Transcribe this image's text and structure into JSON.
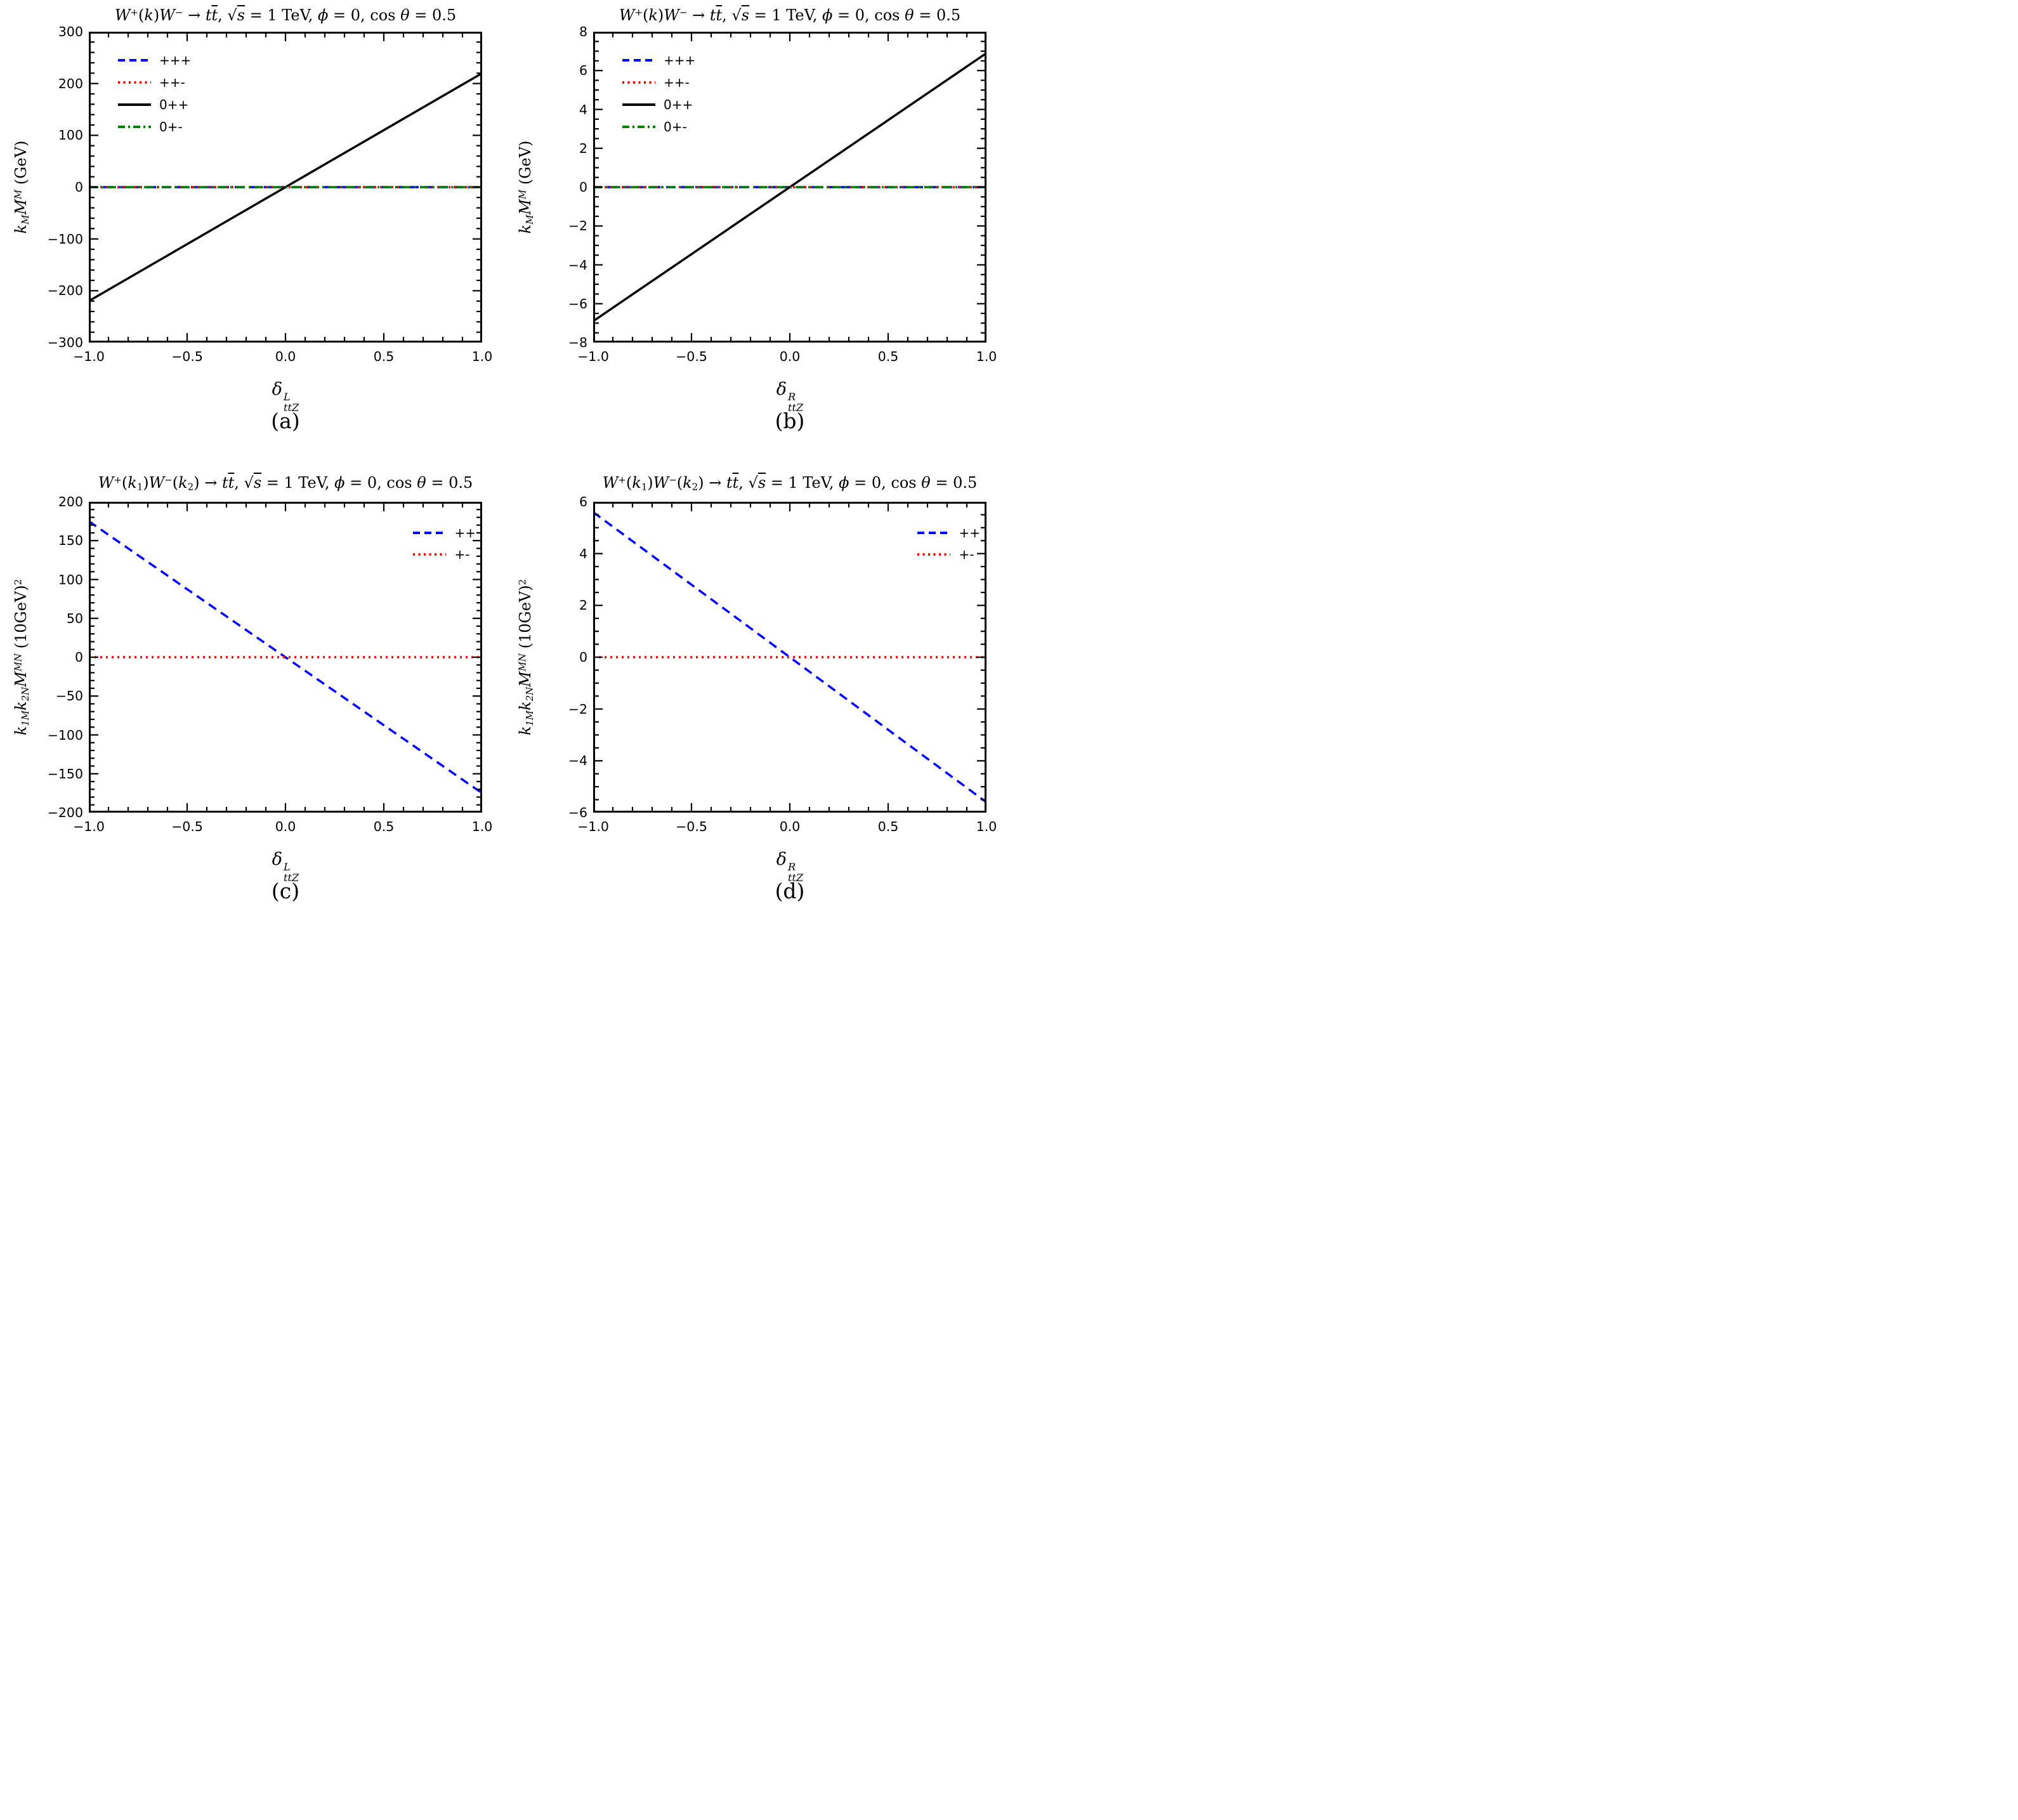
{
  "figure": {
    "panels": [
      {
        "caption": "(a)",
        "title_runs": [
          {
            "t": "W",
            "it": true
          },
          {
            "t": "+",
            "sup": true
          },
          {
            "t": "("
          },
          {
            "t": "k",
            "it": true
          },
          {
            "t": ")"
          },
          {
            "t": "W",
            "it": true
          },
          {
            "t": "−",
            "sup": true
          },
          {
            "t": " → "
          },
          {
            "t": "t",
            "it": true
          },
          {
            "t": "t",
            "it": true,
            "ol": true
          },
          {
            "t": ",  "
          },
          {
            "t": "√"
          },
          {
            "t": "s",
            "it": true,
            "ol": true
          },
          {
            "t": " = 1 TeV,  "
          },
          {
            "t": "ϕ",
            "it": true
          },
          {
            "t": " = 0, cos "
          },
          {
            "t": "θ",
            "it": true
          },
          {
            "t": " = 0.5"
          }
        ],
        "xlabel_runs": [
          {
            "t": "δ",
            "it": true
          },
          {
            "stack": {
              "sup": "L",
              "sub": "ttZ"
            }
          }
        ],
        "ylabel_runs": [
          {
            "t": "k",
            "it": true
          },
          {
            "t": "M",
            "sub": true,
            "it": true
          },
          {
            "t": "M",
            "cal": true
          },
          {
            "t": "M",
            "sup": true,
            "it": true
          },
          {
            "t": " (GeV)"
          }
        ]
      },
      {
        "caption": "(b)",
        "title_runs": [
          {
            "t": "W",
            "it": true
          },
          {
            "t": "+",
            "sup": true
          },
          {
            "t": "("
          },
          {
            "t": "k",
            "it": true
          },
          {
            "t": ")"
          },
          {
            "t": "W",
            "it": true
          },
          {
            "t": "−",
            "sup": true
          },
          {
            "t": " → "
          },
          {
            "t": "t",
            "it": true
          },
          {
            "t": "t",
            "it": true,
            "ol": true
          },
          {
            "t": ",  "
          },
          {
            "t": "√"
          },
          {
            "t": "s",
            "it": true,
            "ol": true
          },
          {
            "t": " = 1 TeV,  "
          },
          {
            "t": "ϕ",
            "it": true
          },
          {
            "t": " = 0, cos "
          },
          {
            "t": "θ",
            "it": true
          },
          {
            "t": " = 0.5"
          }
        ],
        "xlabel_runs": [
          {
            "t": "δ",
            "it": true
          },
          {
            "stack": {
              "sup": "R",
              "sub": "ttZ"
            }
          }
        ],
        "ylabel_runs": [
          {
            "t": "k",
            "it": true
          },
          {
            "t": "M",
            "sub": true,
            "it": true
          },
          {
            "t": "M",
            "cal": true
          },
          {
            "t": "M",
            "sup": true,
            "it": true
          },
          {
            "t": " (GeV)"
          }
        ]
      },
      {
        "caption": "(c)",
        "title_runs": [
          {
            "t": "W",
            "it": true
          },
          {
            "t": "+",
            "sup": true
          },
          {
            "t": "("
          },
          {
            "t": "k",
            "it": true
          },
          {
            "t": "1",
            "sub": true
          },
          {
            "t": ")"
          },
          {
            "t": "W",
            "it": true
          },
          {
            "t": "−",
            "sup": true
          },
          {
            "t": "("
          },
          {
            "t": "k",
            "it": true
          },
          {
            "t": "2",
            "sub": true
          },
          {
            "t": ")"
          },
          {
            "t": " → "
          },
          {
            "t": "t",
            "it": true
          },
          {
            "t": "t",
            "it": true,
            "ol": true
          },
          {
            "t": ",  "
          },
          {
            "t": "√"
          },
          {
            "t": "s",
            "it": true,
            "ol": true
          },
          {
            "t": " = 1 TeV,  "
          },
          {
            "t": "ϕ",
            "it": true
          },
          {
            "t": " = 0, cos "
          },
          {
            "t": "θ",
            "it": true
          },
          {
            "t": " = 0.5"
          }
        ],
        "xlabel_runs": [
          {
            "t": "δ",
            "it": true
          },
          {
            "stack": {
              "sup": "L",
              "sub": "ttZ"
            }
          }
        ],
        "ylabel_runs": [
          {
            "t": "k",
            "it": true
          },
          {
            "t": "1M",
            "sub": true,
            "it": true
          },
          {
            "t": "k",
            "it": true
          },
          {
            "t": "2N",
            "sub": true,
            "it": true
          },
          {
            "t": "M",
            "cal": true
          },
          {
            "t": "MN",
            "sup": true,
            "it": true
          },
          {
            "t": " (10GeV)"
          },
          {
            "t": "2",
            "sup": true
          }
        ]
      },
      {
        "caption": "(d)",
        "title_runs": [
          {
            "t": "W",
            "it": true
          },
          {
            "t": "+",
            "sup": true
          },
          {
            "t": "("
          },
          {
            "t": "k",
            "it": true
          },
          {
            "t": "1",
            "sub": true
          },
          {
            "t": ")"
          },
          {
            "t": "W",
            "it": true
          },
          {
            "t": "−",
            "sup": true
          },
          {
            "t": "("
          },
          {
            "t": "k",
            "it": true
          },
          {
            "t": "2",
            "sub": true
          },
          {
            "t": ")"
          },
          {
            "t": " → "
          },
          {
            "t": "t",
            "it": true
          },
          {
            "t": "t",
            "it": true,
            "ol": true
          },
          {
            "t": ",  "
          },
          {
            "t": "√"
          },
          {
            "t": "s",
            "it": true,
            "ol": true
          },
          {
            "t": " = 1 TeV,  "
          },
          {
            "t": "ϕ",
            "it": true
          },
          {
            "t": " = 0, cos "
          },
          {
            "t": "θ",
            "it": true
          },
          {
            "t": " = 0.5"
          }
        ],
        "xlabel_runs": [
          {
            "t": "δ",
            "it": true
          },
          {
            "stack": {
              "sup": "R",
              "sub": "ttZ"
            }
          }
        ],
        "ylabel_runs": [
          {
            "t": "k",
            "it": true
          },
          {
            "t": "1M",
            "sub": true,
            "it": true
          },
          {
            "t": "k",
            "it": true
          },
          {
            "t": "2N",
            "sub": true,
            "it": true
          },
          {
            "t": "M",
            "cal": true
          },
          {
            "t": "MN",
            "sup": true,
            "it": true
          },
          {
            "t": " (10GeV)"
          },
          {
            "t": "2",
            "sup": true
          }
        ]
      }
    ]
  },
  "chart_data": [
    {
      "id": "a",
      "type": "line",
      "title": "W+(k)W− → tt̄, √s = 1 TeV, φ = 0, cos θ = 0.5",
      "xlabel": "δ_ttZ^L",
      "ylabel": "k_M M^M (GeV)",
      "xlim": [
        -1.0,
        1.0
      ],
      "ylim": [
        -300,
        300
      ],
      "xticks": [
        -1.0,
        -0.5,
        0.0,
        0.5,
        1.0
      ],
      "xtick_labels": [
        "−1.0",
        "−0.5",
        "0.0",
        "0.5",
        "1.0"
      ],
      "xminor_step": 0.1,
      "yticks": [
        300,
        200,
        100,
        0,
        -100,
        -200,
        -300
      ],
      "ytick_labels": [
        "300",
        "200",
        "100",
        "0",
        "−100",
        "−200",
        "−300"
      ],
      "yminor_step": 20,
      "grid": false,
      "legend_pos": "upper-left",
      "series": [
        {
          "name": "+++",
          "color": "#0000ff",
          "dash": "dashed",
          "x": [
            -1,
            1
          ],
          "y": [
            0,
            0
          ]
        },
        {
          "name": "++-",
          "color": "#ff0000",
          "dash": "dotted",
          "x": [
            -1,
            1
          ],
          "y": [
            0,
            0
          ]
        },
        {
          "name": "0++",
          "color": "#000000",
          "dash": "solid",
          "x": [
            -1,
            1
          ],
          "y": [
            -220,
            220
          ]
        },
        {
          "name": "0+-",
          "color": "#008000",
          "dash": "dashdot",
          "x": [
            -1,
            1
          ],
          "y": [
            0,
            0
          ]
        }
      ]
    },
    {
      "id": "b",
      "type": "line",
      "title": "W+(k)W− → tt̄, √s = 1 TeV, φ = 0, cos θ = 0.5",
      "xlabel": "δ_ttZ^R",
      "ylabel": "k_M M^M (GeV)",
      "xlim": [
        -1.0,
        1.0
      ],
      "ylim": [
        -8,
        8
      ],
      "xticks": [
        -1.0,
        -0.5,
        0.0,
        0.5,
        1.0
      ],
      "xtick_labels": [
        "−1.0",
        "−0.5",
        "0.0",
        "0.5",
        "1.0"
      ],
      "xminor_step": 0.1,
      "yticks": [
        8,
        6,
        4,
        2,
        0,
        -2,
        -4,
        -6,
        -8
      ],
      "ytick_labels": [
        "8",
        "6",
        "4",
        "2",
        "0",
        "−2",
        "−4",
        "−6",
        "−8"
      ],
      "yminor_step": 0.5,
      "grid": false,
      "legend_pos": "upper-left",
      "series": [
        {
          "name": "+++",
          "color": "#0000ff",
          "dash": "dashed",
          "x": [
            -1,
            1
          ],
          "y": [
            0,
            0
          ]
        },
        {
          "name": "++-",
          "color": "#ff0000",
          "dash": "dotted",
          "x": [
            -1,
            1
          ],
          "y": [
            0,
            0
          ]
        },
        {
          "name": "0++",
          "color": "#000000",
          "dash": "solid",
          "x": [
            -1,
            1
          ],
          "y": [
            -6.9,
            6.9
          ]
        },
        {
          "name": "0+-",
          "color": "#008000",
          "dash": "dashdot",
          "x": [
            -1,
            1
          ],
          "y": [
            0,
            0
          ]
        }
      ]
    },
    {
      "id": "c",
      "type": "line",
      "title": "W+(k1)W−(k2) → tt̄, √s = 1 TeV, φ = 0, cos θ = 0.5",
      "xlabel": "δ_ttZ^L",
      "ylabel": "k_1M k_2N M^MN (10GeV)^2",
      "xlim": [
        -1.0,
        1.0
      ],
      "ylim": [
        -200,
        200
      ],
      "xticks": [
        -1.0,
        -0.5,
        0.0,
        0.5,
        1.0
      ],
      "xtick_labels": [
        "−1.0",
        "−0.5",
        "0.0",
        "0.5",
        "1.0"
      ],
      "xminor_step": 0.1,
      "yticks": [
        200,
        150,
        100,
        50,
        0,
        -50,
        -100,
        -150,
        -200
      ],
      "ytick_labels": [
        "200",
        "150",
        "100",
        "50",
        "0",
        "−50",
        "−100",
        "−150",
        "−200"
      ],
      "yminor_step": 10,
      "grid": false,
      "legend_pos": "upper-right",
      "series": [
        {
          "name": "++",
          "color": "#0000ff",
          "dash": "dashed",
          "x": [
            -1,
            1
          ],
          "y": [
            175,
            -175
          ]
        },
        {
          "name": "+-",
          "color": "#ff0000",
          "dash": "dotted",
          "x": [
            -1,
            1
          ],
          "y": [
            0,
            0
          ]
        }
      ]
    },
    {
      "id": "d",
      "type": "line",
      "title": "W+(k1)W−(k2) → tt̄, √s = 1 TeV, φ = 0, cos θ = 0.5",
      "xlabel": "δ_ttZ^R",
      "ylabel": "k_1M k_2N M^MN (10GeV)^2",
      "xlim": [
        -1.0,
        1.0
      ],
      "ylim": [
        -6,
        6
      ],
      "xticks": [
        -1.0,
        -0.5,
        0.0,
        0.5,
        1.0
      ],
      "xtick_labels": [
        "−1.0",
        "−0.5",
        "0.0",
        "0.5",
        "1.0"
      ],
      "xminor_step": 0.1,
      "yticks": [
        6,
        4,
        2,
        0,
        -2,
        -4,
        -6
      ],
      "ytick_labels": [
        "6",
        "4",
        "2",
        "0",
        "−2",
        "−4",
        "−6"
      ],
      "yminor_step": 0.5,
      "grid": false,
      "legend_pos": "upper-right",
      "series": [
        {
          "name": "++",
          "color": "#0000ff",
          "dash": "dashed",
          "x": [
            -1,
            1
          ],
          "y": [
            5.6,
            -5.6
          ]
        },
        {
          "name": "+-",
          "color": "#ff0000",
          "dash": "dotted",
          "x": [
            -1,
            1
          ],
          "y": [
            0,
            0
          ]
        }
      ]
    }
  ]
}
